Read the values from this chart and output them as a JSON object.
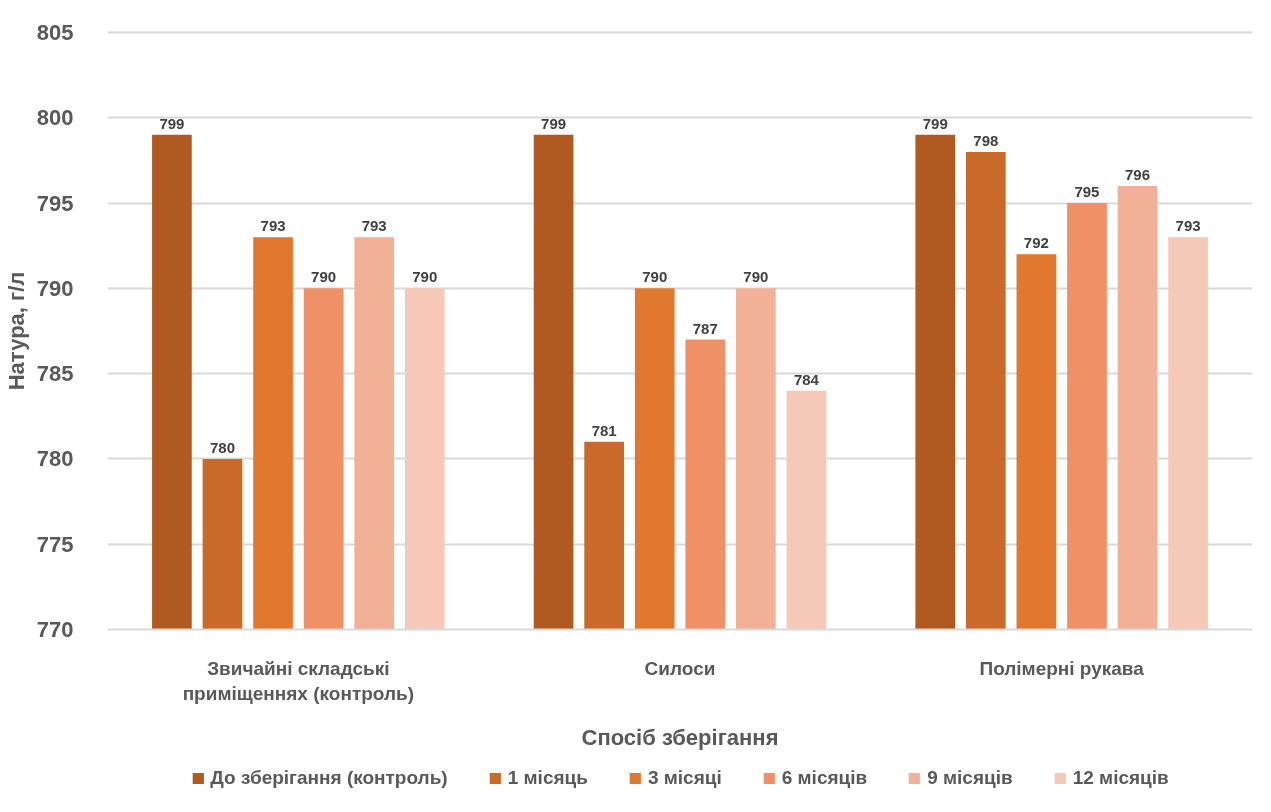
{
  "chart_data": {
    "type": "bar",
    "xlabel": "Спосіб зберігання",
    "ylabel": "Натура, г/л",
    "categories": [
      "Звичайні складські приміщеннях (контроль)",
      "Силоси",
      "Полімерні рукава"
    ],
    "series": [
      {
        "name": "До зберігання (контроль)",
        "color": "#b05a22",
        "values": [
          799,
          799,
          799
        ]
      },
      {
        "name": "1 місяць",
        "color": "#c96a2a",
        "values": [
          780,
          781,
          798
        ]
      },
      {
        "name": "3 місяці",
        "color": "#e07830",
        "values": [
          793,
          790,
          792
        ]
      },
      {
        "name": "6 місяців",
        "color": "#ef9066",
        "values": [
          790,
          787,
          795
        ]
      },
      {
        "name": "9 місяців",
        "color": "#f2b096",
        "values": [
          793,
          790,
          796
        ]
      },
      {
        "name": "12 місяців",
        "color": "#f5c8b8",
        "values": [
          790,
          784,
          793
        ]
      }
    ],
    "ylim": [
      770,
      805
    ],
    "yticks": [
      770,
      775,
      780,
      785,
      790,
      795,
      800,
      805
    ],
    "grid": "y",
    "legend": "bottom",
    "data_labels": true
  }
}
